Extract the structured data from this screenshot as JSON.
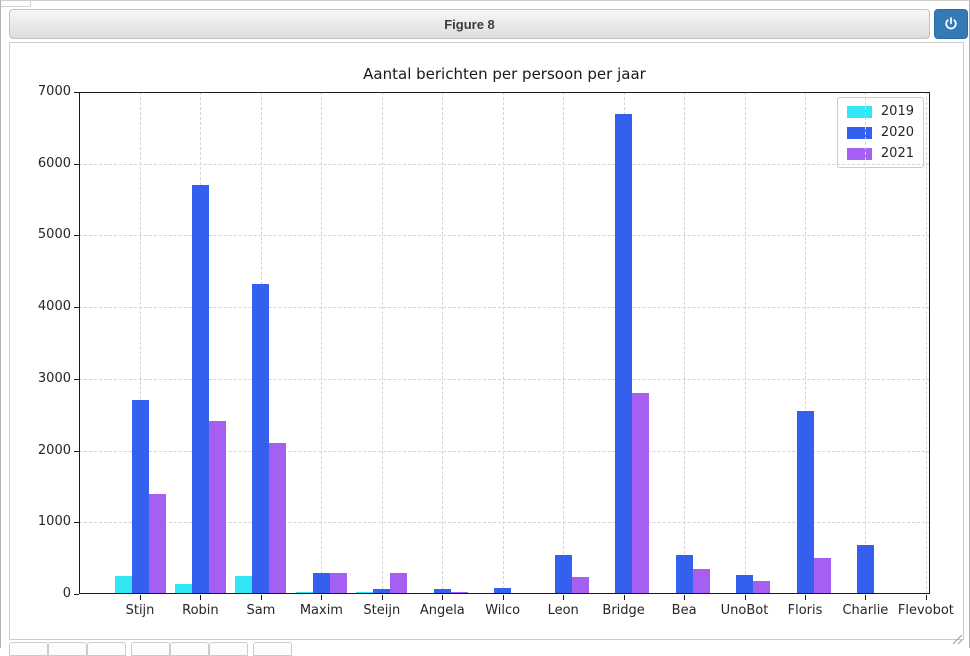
{
  "window": {
    "title": "Figure 8",
    "icons": {
      "power": "power-icon",
      "resize": "resize-grip-icon"
    }
  },
  "chart_data": {
    "type": "bar",
    "title": "Aantal berichten per persoon per jaar",
    "xlabel": "",
    "ylabel": "",
    "categories": [
      "Stijn",
      "Robin",
      "Sam",
      "Maxim",
      "Steijn",
      "Angela",
      "Wilco",
      "Leon",
      "Bridge",
      "Bea",
      "UnoBot",
      "Floris",
      "Charlie",
      "Flevobot"
    ],
    "series": [
      {
        "name": "2019",
        "color": "#31E7F5",
        "values": [
          250,
          140,
          250,
          30,
          35,
          15,
          0,
          0,
          0,
          0,
          0,
          0,
          0,
          0
        ]
      },
      {
        "name": "2020",
        "color": "#3560EE",
        "values": [
          2700,
          5700,
          4320,
          300,
          65,
          75,
          90,
          540,
          6700,
          550,
          270,
          2550,
          690,
          0
        ]
      },
      {
        "name": "2021",
        "color": "#A55FF1",
        "values": [
          1390,
          2420,
          2100,
          300,
          290,
          30,
          15,
          240,
          2800,
          350,
          185,
          500,
          0,
          0
        ]
      }
    ],
    "ylim": [
      0,
      7000
    ],
    "yticks": [
      0,
      1000,
      2000,
      3000,
      4000,
      5000,
      6000,
      7000
    ],
    "grid": "dashed, both axes",
    "legend_position": "upper right"
  }
}
